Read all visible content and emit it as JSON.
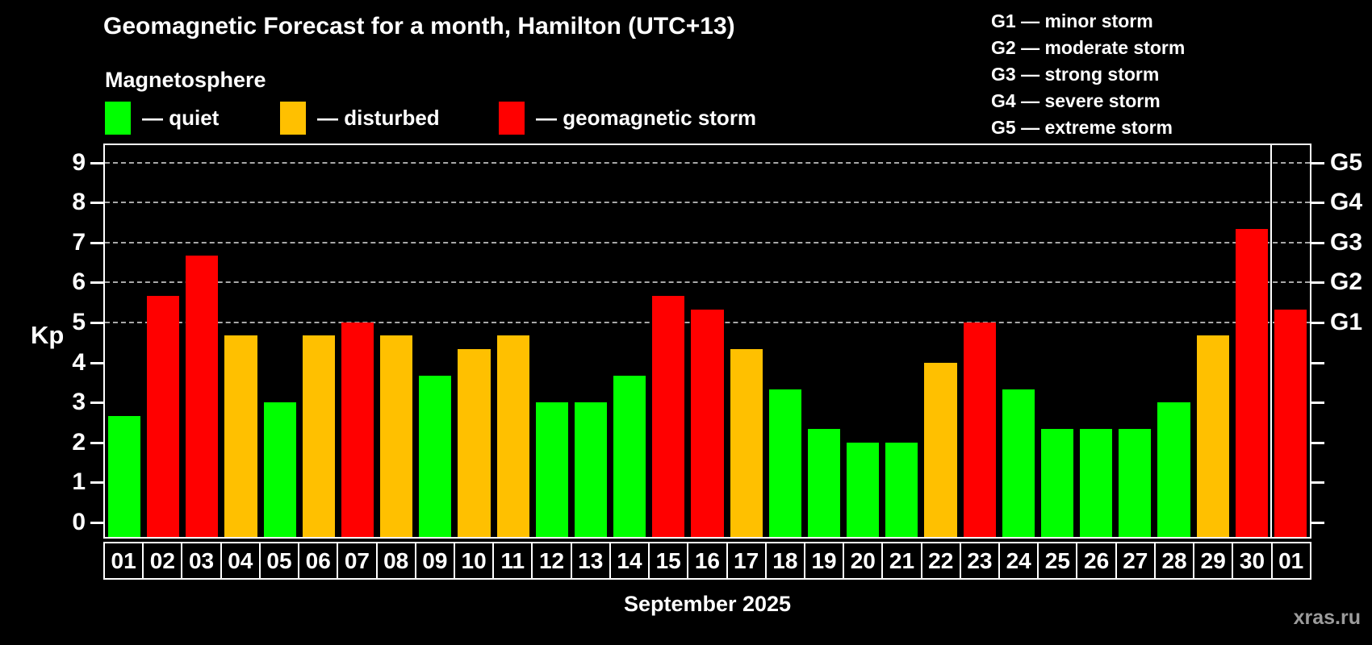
{
  "header": {
    "title": "Geomagnetic Forecast for a month, Hamilton (UTC+13)",
    "subtitle": "Magnetosphere"
  },
  "legend": {
    "items": [
      {
        "label": "— quiet",
        "status": "quiet"
      },
      {
        "label": "— disturbed",
        "status": "disturbed"
      },
      {
        "label": "— geomagnetic storm",
        "status": "storm"
      }
    ]
  },
  "storm_scale_legend": {
    "items": [
      "G1 — minor storm",
      "G2 — moderate storm",
      "G3 — strong storm",
      "G4 — severe storm",
      "G5 — extreme storm"
    ]
  },
  "colors": {
    "quiet": "#00ff00",
    "disturbed": "#ffc000",
    "storm": "#ff0000",
    "background": "#000000",
    "grid": "#a8a8a8",
    "axis": "#ffffff",
    "watermark": "#9c9c9c"
  },
  "chart_data": {
    "type": "bar",
    "title": "Geomagnetic Forecast for a month, Hamilton (UTC+13)",
    "ylabel": "Kp",
    "xlabel": "September 2025",
    "ylim": [
      0,
      9.4
    ],
    "grid": "horizontal dashed lines at storm-level thresholds only",
    "legend_position": "top",
    "yticks": [
      0,
      1,
      2,
      3,
      4,
      5,
      6,
      7,
      8,
      9
    ],
    "gridlines_at_kp": [
      5,
      6,
      7,
      8,
      9
    ],
    "right_axis": [
      {
        "label": "G1",
        "kp": 5
      },
      {
        "label": "G2",
        "kp": 6
      },
      {
        "label": "G3",
        "kp": 7
      },
      {
        "label": "G4",
        "kp": 8
      },
      {
        "label": "G5",
        "kp": 9
      }
    ],
    "categories": [
      "01",
      "02",
      "03",
      "04",
      "05",
      "06",
      "07",
      "08",
      "09",
      "10",
      "11",
      "12",
      "13",
      "14",
      "15",
      "16",
      "17",
      "18",
      "19",
      "20",
      "21",
      "22",
      "23",
      "24",
      "25",
      "26",
      "27",
      "28",
      "29",
      "30",
      "01"
    ],
    "values": [
      2.67,
      5.67,
      6.67,
      4.67,
      3.0,
      4.67,
      5.0,
      4.67,
      3.67,
      4.33,
      4.67,
      3.0,
      3.0,
      3.67,
      5.67,
      5.33,
      4.33,
      3.33,
      2.33,
      2.0,
      2.0,
      4.0,
      5.0,
      3.33,
      2.33,
      2.33,
      2.33,
      3.0,
      4.67,
      7.33,
      5.33
    ],
    "statuses": [
      "quiet",
      "storm",
      "storm",
      "disturbed",
      "quiet",
      "disturbed",
      "storm",
      "disturbed",
      "quiet",
      "disturbed",
      "disturbed",
      "quiet",
      "quiet",
      "quiet",
      "storm",
      "storm",
      "disturbed",
      "quiet",
      "quiet",
      "quiet",
      "quiet",
      "disturbed",
      "storm",
      "quiet",
      "quiet",
      "quiet",
      "quiet",
      "quiet",
      "disturbed",
      "storm",
      "storm"
    ],
    "month_boundary_before_index": 30
  },
  "footer": {
    "month_label": "September 2025",
    "watermark": "xras.ru"
  }
}
